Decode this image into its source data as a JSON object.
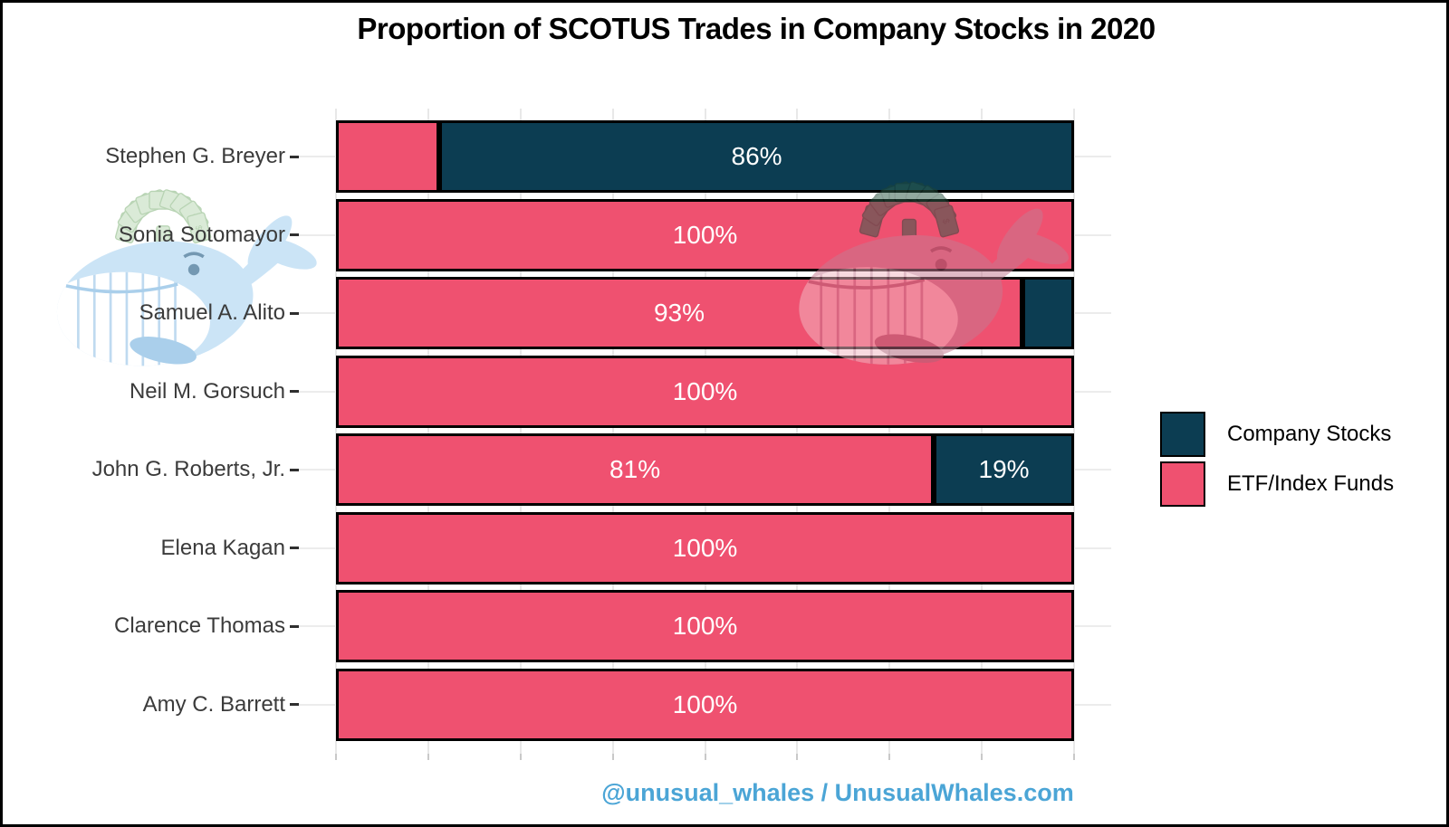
{
  "title": "Proportion of SCOTUS Trades in Company Stocks in 2020",
  "footer": {
    "text": "@unusual_whales / UnusualWhales.com",
    "color": "#4BA5D6"
  },
  "legend": {
    "items": [
      {
        "label": "Company Stocks",
        "color": "#0C3D52"
      },
      {
        "label": "ETF/Index Funds",
        "color": "#EF5170"
      }
    ]
  },
  "watermarks": {
    "left": "light-blue-whale-with-money-spout-icon",
    "right": "pink-whale-with-money-spout-icon"
  },
  "chart_data": {
    "type": "bar",
    "orientation": "horizontal",
    "stacked": true,
    "title": "Proportion of SCOTUS Trades in Company Stocks in 2020",
    "categories": [
      "Stephen G. Breyer",
      "Sonia Sotomayor",
      "Samuel A. Alito",
      "Neil M. Gorsuch",
      "John G. Roberts, Jr.",
      "Elena Kagan",
      "Clarence Thomas",
      "Amy C. Barrett"
    ],
    "series": [
      {
        "name": "ETF/Index Funds",
        "color": "#EF5170",
        "values": [
          14,
          100,
          93,
          100,
          81,
          100,
          100,
          100
        ],
        "labels": [
          "",
          "100%",
          "93%",
          "100%",
          "81%",
          "100%",
          "100%",
          "100%"
        ]
      },
      {
        "name": "Company Stocks",
        "color": "#0C3D52",
        "values": [
          86,
          0,
          7,
          0,
          19,
          0,
          0,
          0
        ],
        "labels": [
          "86%",
          "",
          "",
          "",
          "19%",
          "",
          "",
          ""
        ]
      }
    ],
    "xlabel": "",
    "ylabel": "",
    "xlim": [
      0,
      100
    ],
    "x_gridlines_pct": [
      0,
      12.5,
      25,
      37.5,
      50,
      62.5,
      75,
      87.5,
      100
    ],
    "grid": true,
    "legend_position": "right",
    "bar_label_color": "#ffffff"
  }
}
